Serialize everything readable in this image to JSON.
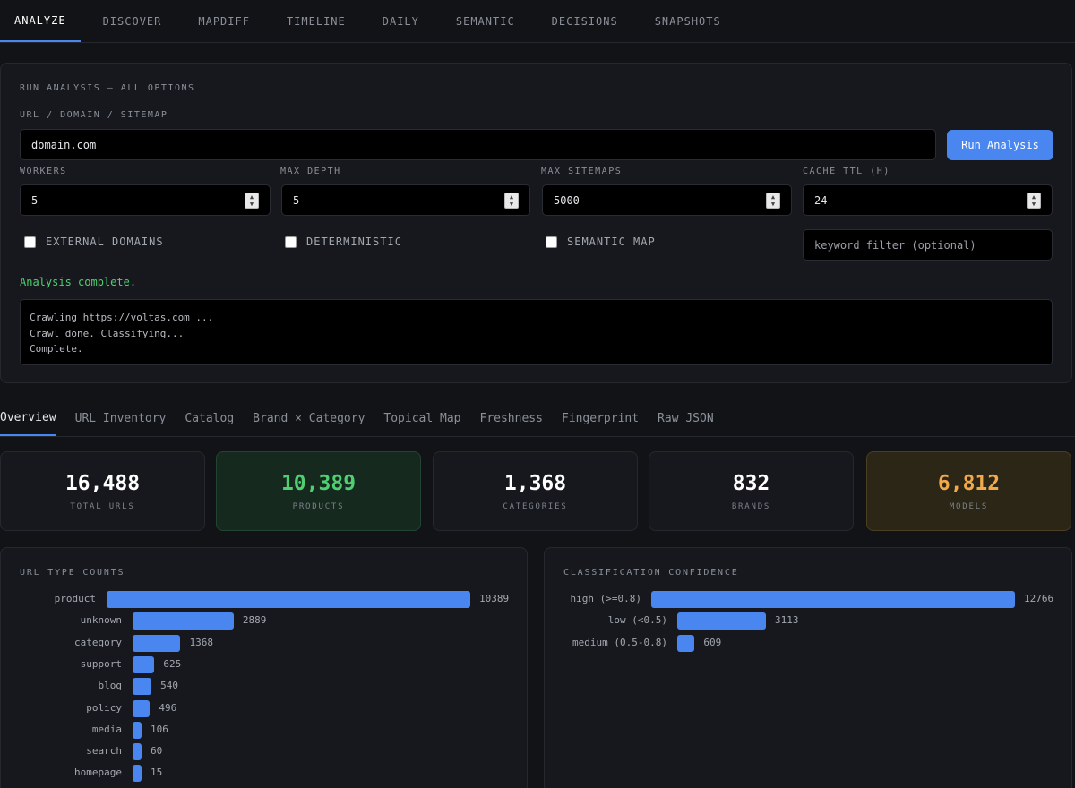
{
  "nav": {
    "tabs": [
      "ANALYZE",
      "DISCOVER",
      "MAPDIFF",
      "TIMELINE",
      "DAILY",
      "SEMANTIC",
      "DECISIONS",
      "SNAPSHOTS"
    ],
    "active": "ANALYZE"
  },
  "run": {
    "section_title": "RUN ANALYSIS — ALL OPTIONS",
    "url_label": "URL / DOMAIN / SITEMAP",
    "url_value": "domain.com",
    "run_button": "Run Analysis",
    "workers_label": "WORKERS",
    "workers_value": "5",
    "max_depth_label": "MAX DEPTH",
    "max_depth_value": "5",
    "max_sitemaps_label": "MAX SITEMAPS",
    "max_sitemaps_value": "5000",
    "cache_ttl_label": "CACHE TTL (H)",
    "cache_ttl_value": "24",
    "external_domains_label": "EXTERNAL DOMAINS",
    "deterministic_label": "DETERMINISTIC",
    "semantic_map_label": "SEMANTIC MAP",
    "keyword_placeholder": "keyword filter (optional)",
    "status": "Analysis complete.",
    "log": "Crawling https://voltas.com ...\nCrawl done. Classifying...\nComplete."
  },
  "subtabs": [
    "Overview",
    "URL Inventory",
    "Catalog",
    "Brand × Category",
    "Topical Map",
    "Freshness",
    "Fingerprint",
    "Raw JSON"
  ],
  "stats": [
    {
      "value": "16,488",
      "label": "TOTAL URLS",
      "style": "plain"
    },
    {
      "value": "10,389",
      "label": "PRODUCTS",
      "style": "green"
    },
    {
      "value": "1,368",
      "label": "CATEGORIES",
      "style": "plain"
    },
    {
      "value": "832",
      "label": "BRANDS",
      "style": "plain"
    },
    {
      "value": "6,812",
      "label": "MODELS",
      "style": "amber"
    }
  ],
  "colors": {
    "accent": "#4a86f0",
    "success": "#4fcf71",
    "warning": "#f1a94a"
  },
  "chart_data": [
    {
      "type": "bar",
      "orientation": "horizontal",
      "title": "URL TYPE COUNTS",
      "categories": [
        "product",
        "unknown",
        "category",
        "support",
        "blog",
        "policy",
        "media",
        "search",
        "homepage"
      ],
      "values": [
        10389,
        2889,
        1368,
        625,
        540,
        496,
        106,
        60,
        15
      ]
    },
    {
      "type": "bar",
      "orientation": "horizontal",
      "title": "CLASSIFICATION CONFIDENCE",
      "categories": [
        "high (>=0.8)",
        "low (<0.5)",
        "medium (0.5-0.8)"
      ],
      "values": [
        12766,
        3113,
        609
      ]
    }
  ]
}
